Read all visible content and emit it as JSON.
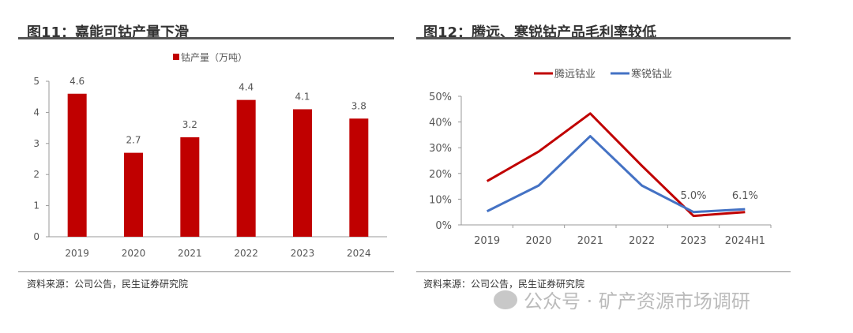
{
  "left": {
    "title": "图11：嘉能可钴产量下滑",
    "source": "资料来源：公司公告，民生证券研究院"
  },
  "right": {
    "title": "图12：腾远、寒锐钴产品毛利率较低",
    "source": "资料来源：公司公告，民生证券研究院"
  },
  "watermark": "公众号 · 矿产资源市场调研",
  "chart_data": [
    {
      "type": "bar",
      "title": "图11：嘉能可钴产量下滑",
      "categories": [
        "2019",
        "2020",
        "2021",
        "2022",
        "2023",
        "2024"
      ],
      "series": [
        {
          "name": "钴产量（万吨）",
          "values": [
            4.6,
            2.7,
            3.2,
            4.4,
            4.1,
            3.8
          ],
          "color": "#C00000"
        }
      ],
      "data_labels": [
        "4.6",
        "2.7",
        "3.2",
        "4.4",
        "4.1",
        "3.8"
      ],
      "ylim": [
        0,
        5
      ],
      "yticks": [
        "0",
        "1",
        "2",
        "3",
        "4",
        "5"
      ],
      "legend": "top-center"
    },
    {
      "type": "line",
      "title": "图12：腾远、寒锐钴产品毛利率较低",
      "categories": [
        "2019",
        "2020",
        "2021",
        "2022",
        "2023",
        "2024H1"
      ],
      "series": [
        {
          "name": "腾远钴业",
          "values": [
            17,
            28.5,
            43.3,
            23,
            3.5,
            5.0
          ],
          "color": "#C00000"
        },
        {
          "name": "寒锐钴业",
          "values": [
            5.3,
            15.3,
            34.5,
            15.3,
            5.0,
            6.1
          ],
          "color": "#4472C4"
        }
      ],
      "annotations": [
        {
          "category": "2023",
          "text": "5.0%"
        },
        {
          "category": "2024H1",
          "text": "6.1%"
        }
      ],
      "ylim": [
        0,
        50
      ],
      "yticks": [
        "0%",
        "10%",
        "20%",
        "30%",
        "40%",
        "50%"
      ],
      "legend": "top-center"
    }
  ]
}
